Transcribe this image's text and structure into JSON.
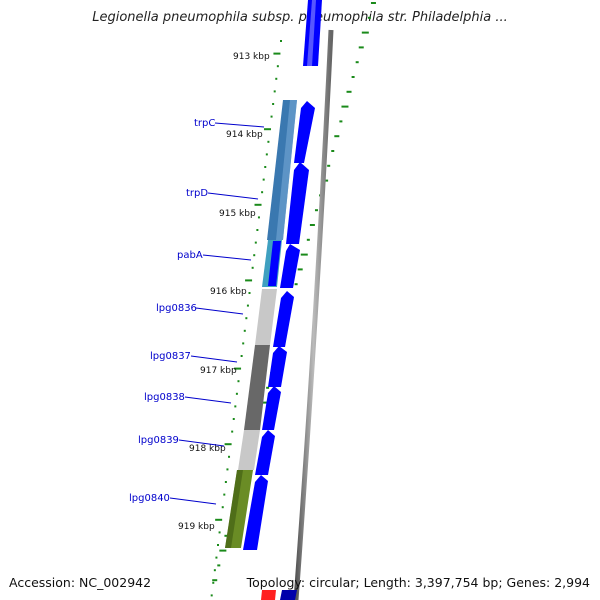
{
  "title": "Legionella pneumophila subsp. pneumophila str. Philadelphia ...",
  "footer": {
    "accession": "Accession: NC_002942",
    "summary": "Topology: circular; Length: 3,397,754 bp; Genes: 2,994"
  },
  "kbp_ticks": [
    "913 kbp",
    "914 kbp",
    "915 kbp",
    "916 kbp",
    "917 kbp",
    "918 kbp",
    "919 kbp"
  ],
  "gene_labels": [
    "trpC",
    "trpD",
    "pabA",
    "lpg0836",
    "lpg0837",
    "lpg0838",
    "lpg0839",
    "lpg0840"
  ],
  "colors": {
    "cds_arrow": "#0000ff",
    "trpC": "#3a78b0",
    "trpD": "#3a78b0",
    "pabA": "#3fa0c0",
    "lpg0836": "#c8c8c8",
    "lpg0837": "#686868",
    "lpg0838": "#686868",
    "lpg0839": "#c8c8c8",
    "lpg0840": "#6a8c25",
    "backbone": "#808080",
    "gc_ticks": "#1a8a1a",
    "label_line": "#0000cc"
  }
}
